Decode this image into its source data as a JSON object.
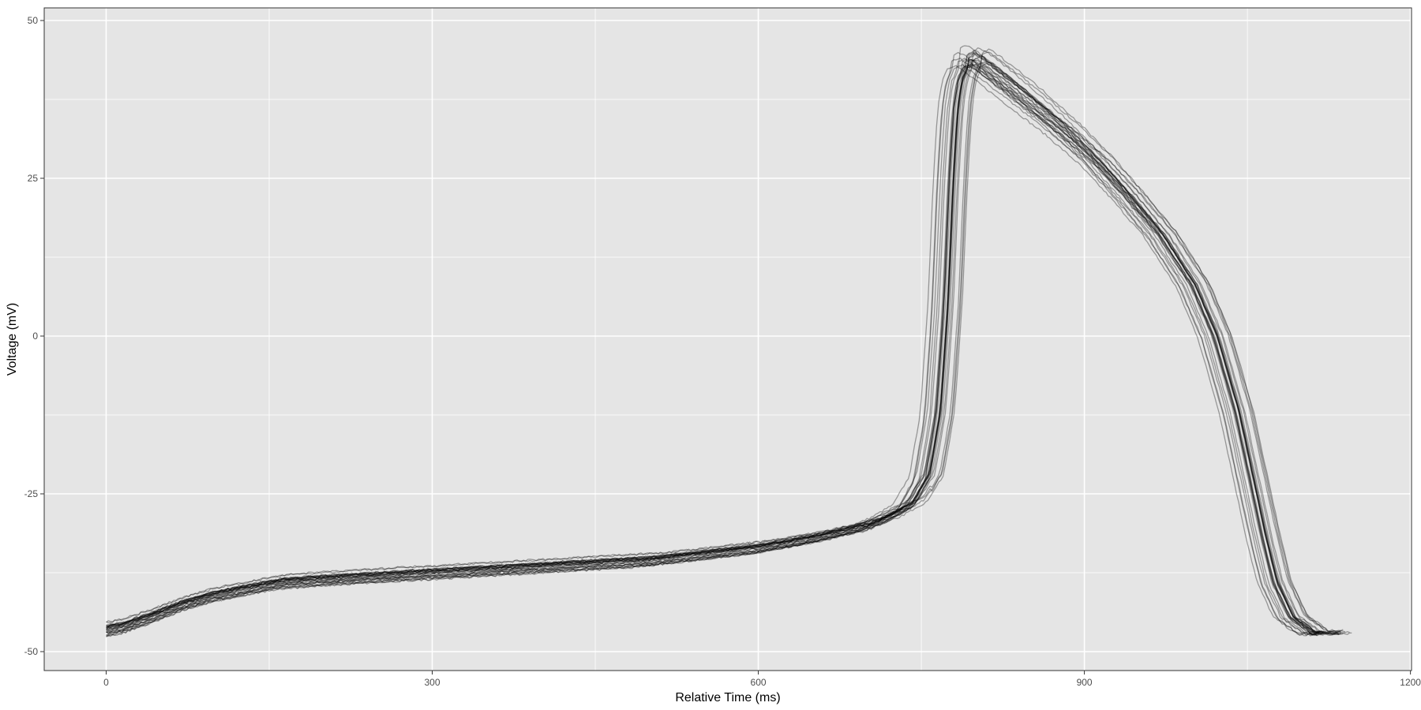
{
  "chart_data": {
    "type": "line",
    "title": "",
    "xlabel": "Relative Time (ms)",
    "ylabel": "Voltage (mV)",
    "xlim": [
      -57,
      1201
    ],
    "ylim": [
      -53,
      52
    ],
    "x_ticks": [
      0,
      300,
      600,
      900,
      1200
    ],
    "x_tick_labels": [
      "0",
      "300",
      "600",
      "900",
      "1200"
    ],
    "y_ticks": [
      -50,
      -25,
      0,
      25,
      50
    ],
    "y_tick_labels": [
      "-50",
      "-25",
      "0",
      "25",
      "50"
    ],
    "grid": true,
    "legend": "none",
    "colors": {
      "panel": "#e5e5e5",
      "grid": "#ffffff",
      "series": "#000000",
      "axis_text": "#4d4d4d",
      "border": "#333333"
    },
    "series_count": 28,
    "series_opacity": 0.35,
    "reference_trace": {
      "x": [
        0,
        15,
        40,
        70,
        100,
        130,
        160,
        200,
        250,
        300,
        350,
        400,
        450,
        500,
        550,
        600,
        650,
        700,
        720,
        740,
        755,
        765,
        772,
        777,
        781,
        785,
        790,
        797,
        805,
        820,
        850,
        880,
        910,
        940,
        970,
        1000,
        1020,
        1040,
        1055,
        1065,
        1075,
        1090,
        1110
      ],
      "y": [
        -46.5,
        -46,
        -44.5,
        -42.5,
        -41,
        -40,
        -39,
        -38.5,
        -38,
        -37.5,
        -37,
        -36.5,
        -36,
        -35.5,
        -34.5,
        -33.5,
        -32,
        -30,
        -28.5,
        -26.5,
        -22,
        -12,
        5,
        25,
        36,
        40.5,
        42.5,
        43,
        42,
        40,
        36,
        32,
        27.5,
        22,
        16,
        8,
        0,
        -12,
        -24,
        -32,
        -39,
        -44.5,
        -47
      ]
    }
  }
}
